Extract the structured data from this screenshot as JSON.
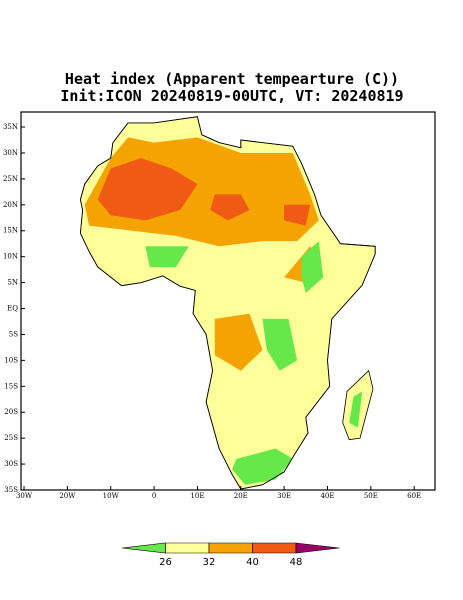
{
  "header": {
    "title": "Heat index (Apparent tempearture (C))",
    "subtitle": "Init:ICON 20240819-00UTC, VT: 20240819"
  },
  "map": {
    "xlim": [
      -30.7,
      64.8
    ],
    "ylim": [
      -35,
      37.9
    ],
    "xticks": [
      {
        "value": -30,
        "label": "30W"
      },
      {
        "value": -20,
        "label": "20W"
      },
      {
        "value": -10,
        "label": "10W"
      },
      0,
      {
        "value": 10,
        "label": "10E"
      },
      {
        "value": 20,
        "label": "20E"
      },
      {
        "value": 30,
        "label": "30E"
      },
      {
        "value": 40,
        "label": "40E"
      },
      {
        "value": 50,
        "label": "50E"
      },
      {
        "value": 60,
        "label": "60E"
      }
    ],
    "yticks": [
      {
        "value": 35,
        "label": "35N"
      },
      {
        "value": 30,
        "label": "30N"
      },
      {
        "value": 25,
        "label": "25N"
      },
      {
        "value": 20,
        "label": "20N"
      },
      {
        "value": 15,
        "label": "15N"
      },
      {
        "value": 10,
        "label": "10N"
      },
      {
        "value": 5,
        "label": "5N"
      },
      {
        "value": 0,
        "label": "EQ"
      },
      {
        "value": -5,
        "label": "5S"
      },
      {
        "value": -10,
        "label": "10S"
      },
      {
        "value": -15,
        "label": "15S"
      },
      {
        "value": -20,
        "label": "20S"
      },
      {
        "value": -25,
        "label": "25S"
      },
      {
        "value": -30,
        "label": "30S"
      },
      {
        "value": -35,
        "label": "35S"
      }
    ]
  },
  "colorbar": {
    "levels": [
      26,
      32,
      40,
      48
    ],
    "colors": [
      "#66e84a",
      "#ffff99",
      "#f5a300",
      "#f05a14",
      "#990066"
    ]
  }
}
